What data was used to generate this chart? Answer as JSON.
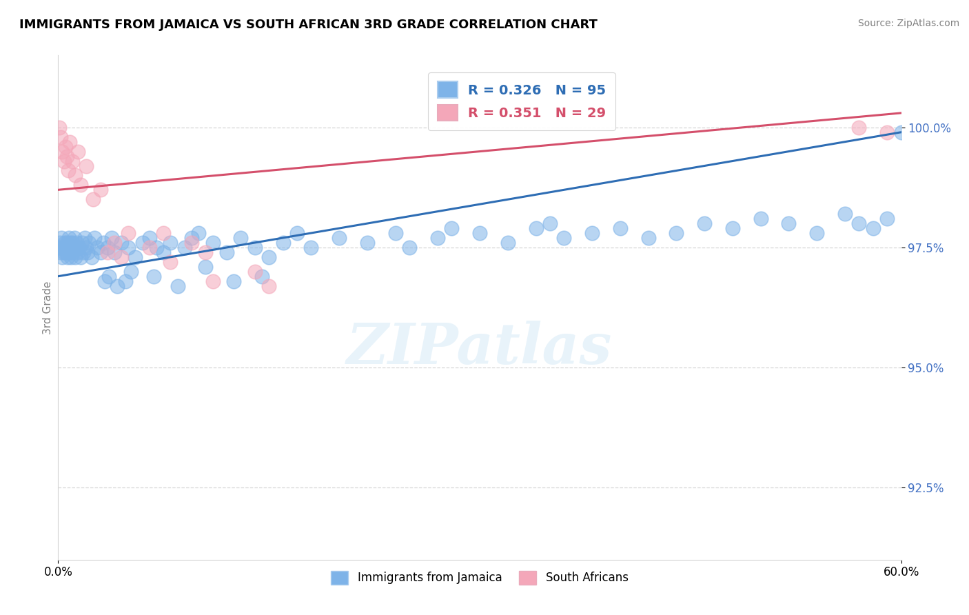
{
  "title": "IMMIGRANTS FROM JAMAICA VS SOUTH AFRICAN 3RD GRADE CORRELATION CHART",
  "source": "Source: ZipAtlas.com",
  "ylabel": "3rd Grade",
  "yticks": [
    92.5,
    95.0,
    97.5,
    100.0
  ],
  "xlim": [
    0.0,
    60.0
  ],
  "ylim": [
    91.0,
    101.5
  ],
  "legend_blue_label": "R = 0.326   N = 95",
  "legend_pink_label": "R = 0.351   N = 29",
  "legend_bottom_blue": "Immigrants from Jamaica",
  "legend_bottom_pink": "South Africans",
  "blue_color": "#7EB3E8",
  "pink_color": "#F4A7B9",
  "blue_line_color": "#2E6DB4",
  "pink_line_color": "#D44F6B",
  "blue_R": 0.326,
  "blue_N": 95,
  "pink_R": 0.351,
  "pink_N": 29,
  "watermark": "ZIPatlas",
  "blue_line_y0": 96.9,
  "blue_line_y60": 99.9,
  "pink_line_y0": 98.7,
  "pink_line_y60": 100.3,
  "blue_x": [
    0.1,
    0.15,
    0.2,
    0.25,
    0.3,
    0.35,
    0.4,
    0.45,
    0.5,
    0.55,
    0.6,
    0.65,
    0.7,
    0.75,
    0.8,
    0.85,
    0.9,
    0.95,
    1.0,
    1.05,
    1.1,
    1.15,
    1.2,
    1.3,
    1.4,
    1.5,
    1.6,
    1.7,
    1.8,
    1.9,
    2.0,
    2.1,
    2.2,
    2.4,
    2.6,
    2.8,
    3.0,
    3.2,
    3.5,
    3.8,
    4.0,
    4.5,
    5.0,
    5.5,
    6.0,
    6.5,
    7.0,
    7.5,
    8.0,
    9.0,
    9.5,
    10.0,
    11.0,
    12.0,
    13.0,
    14.0,
    15.0,
    16.0,
    17.0,
    18.0,
    20.0,
    22.0,
    24.0,
    25.0,
    27.0,
    28.0,
    30.0,
    32.0,
    34.0,
    35.0,
    36.0,
    38.0,
    40.0,
    42.0,
    44.0,
    46.0,
    48.0,
    50.0,
    52.0,
    54.0,
    56.0,
    57.0,
    58.0,
    59.0,
    60.0,
    3.3,
    3.6,
    4.2,
    4.8,
    5.2,
    6.8,
    8.5,
    10.5,
    12.5,
    14.5
  ],
  "blue_y": [
    97.5,
    97.6,
    97.4,
    97.7,
    97.3,
    97.5,
    97.4,
    97.6,
    97.5,
    97.4,
    97.6,
    97.3,
    97.5,
    97.7,
    97.4,
    97.6,
    97.3,
    97.5,
    97.6,
    97.4,
    97.5,
    97.7,
    97.3,
    97.6,
    97.4,
    97.5,
    97.3,
    97.6,
    97.4,
    97.7,
    97.5,
    97.4,
    97.6,
    97.3,
    97.7,
    97.5,
    97.4,
    97.6,
    97.5,
    97.7,
    97.4,
    97.6,
    97.5,
    97.3,
    97.6,
    97.7,
    97.5,
    97.4,
    97.6,
    97.5,
    97.7,
    97.8,
    97.6,
    97.4,
    97.7,
    97.5,
    97.3,
    97.6,
    97.8,
    97.5,
    97.7,
    97.6,
    97.8,
    97.5,
    97.7,
    97.9,
    97.8,
    97.6,
    97.9,
    98.0,
    97.7,
    97.8,
    97.9,
    97.7,
    97.8,
    98.0,
    97.9,
    98.1,
    98.0,
    97.8,
    98.2,
    98.0,
    97.9,
    98.1,
    99.9,
    96.8,
    96.9,
    96.7,
    96.8,
    97.0,
    96.9,
    96.7,
    97.1,
    96.8,
    96.9
  ],
  "pink_x": [
    0.1,
    0.2,
    0.3,
    0.4,
    0.5,
    0.6,
    0.7,
    0.8,
    1.0,
    1.2,
    1.4,
    1.6,
    2.0,
    2.5,
    3.0,
    3.5,
    4.0,
    4.5,
    5.0,
    6.5,
    7.5,
    8.0,
    9.5,
    10.5,
    11.0,
    14.0,
    15.0,
    57.0,
    59.0
  ],
  "pink_y": [
    100.0,
    99.8,
    99.5,
    99.3,
    99.6,
    99.4,
    99.1,
    99.7,
    99.3,
    99.0,
    99.5,
    98.8,
    99.2,
    98.5,
    98.7,
    97.4,
    97.6,
    97.3,
    97.8,
    97.5,
    97.8,
    97.2,
    97.6,
    97.4,
    96.8,
    97.0,
    96.7,
    100.0,
    99.9
  ]
}
